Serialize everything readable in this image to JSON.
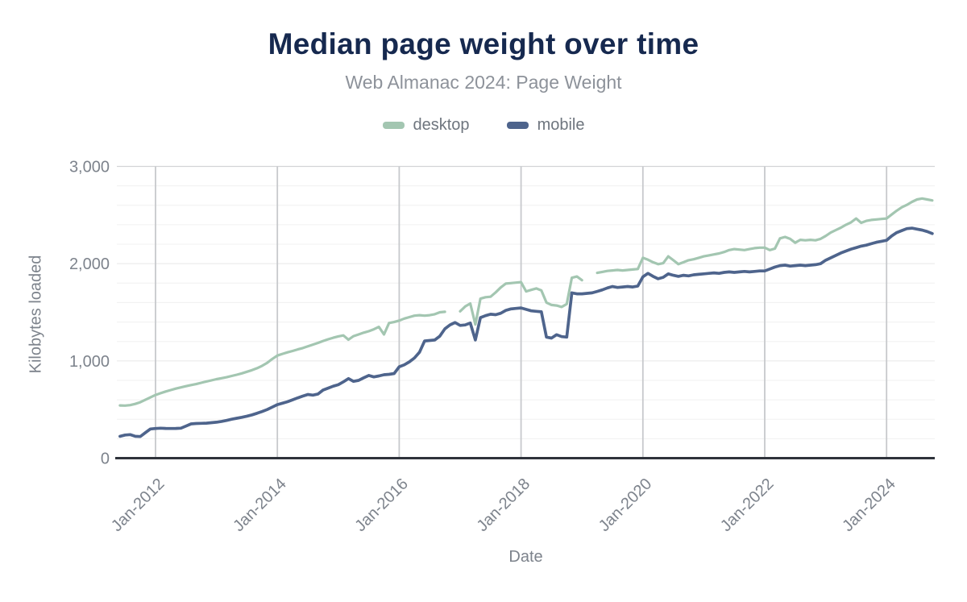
{
  "header": {
    "title": "Median page weight over time",
    "subtitle": "Web Almanac 2024: Page Weight"
  },
  "axes": {
    "y_title": "Kilobytes loaded",
    "x_title": "Date"
  },
  "chart_data": {
    "type": "line",
    "title": "Median page weight over time",
    "subtitle": "Web Almanac 2024: Page Weight",
    "xlabel": "Date",
    "ylabel": "Kilobytes loaded",
    "ylim": [
      0,
      3000
    ],
    "grid": "on",
    "legend_position": "top",
    "y_ticks": [
      {
        "v": 0,
        "label": "0"
      },
      {
        "v": 1000,
        "label": "1,000"
      },
      {
        "v": 2000,
        "label": "2,000"
      },
      {
        "v": 3000,
        "label": "3,000"
      }
    ],
    "y_minor_grid_step": 200,
    "x_ticks": [
      {
        "year": 2012,
        "label": "Jan-2012"
      },
      {
        "year": 2014,
        "label": "Jan-2014"
      },
      {
        "year": 2016,
        "label": "Jan-2016"
      },
      {
        "year": 2018,
        "label": "Jan-2018"
      },
      {
        "year": 2020,
        "label": "Jan-2020"
      },
      {
        "year": 2022,
        "label": "Jan-2022"
      },
      {
        "year": 2024,
        "label": "Jan-2024"
      }
    ],
    "x_start": "2011-06",
    "x_end": "2024-10",
    "x_frequency": "monthly",
    "units": "KB",
    "series": [
      {
        "name": "desktop",
        "color": "#a3c6b1",
        "values": [
          542,
          540,
          545,
          558,
          575,
          600,
          625,
          650,
          668,
          685,
          700,
          715,
          728,
          740,
          752,
          762,
          775,
          788,
          800,
          812,
          822,
          832,
          845,
          858,
          872,
          888,
          905,
          925,
          950,
          980,
          1020,
          1055,
          1072,
          1088,
          1102,
          1118,
          1132,
          1150,
          1168,
          1185,
          1205,
          1222,
          1238,
          1252,
          1262,
          1218,
          1255,
          1272,
          1290,
          1305,
          1325,
          1350,
          1272,
          1390,
          1400,
          1415,
          1435,
          1450,
          1465,
          1470,
          1465,
          1470,
          1480,
          1500,
          1505,
          null,
          null,
          1510,
          1560,
          1590,
          1375,
          1640,
          1655,
          1660,
          1705,
          1755,
          1795,
          1800,
          1805,
          1810,
          1715,
          1730,
          1745,
          1725,
          1600,
          1575,
          1570,
          1555,
          1585,
          1855,
          1868,
          1830,
          null,
          null,
          1905,
          1915,
          1925,
          1930,
          1935,
          1930,
          1935,
          1940,
          1945,
          2060,
          2040,
          2015,
          1995,
          2005,
          2075,
          2035,
          1995,
          2015,
          2035,
          2045,
          2060,
          2075,
          2085,
          2095,
          2105,
          2120,
          2140,
          2150,
          2145,
          2140,
          2150,
          2160,
          2165,
          2165,
          2140,
          2155,
          2260,
          2275,
          2255,
          2215,
          2245,
          2240,
          2245,
          2240,
          2255,
          2285,
          2320,
          2345,
          2370,
          2400,
          2425,
          2465,
          2420,
          2440,
          2450,
          2455,
          2460,
          2465,
          2505,
          2545,
          2580,
          2605,
          2635,
          2660,
          2670,
          2660,
          2650
        ]
      },
      {
        "name": "mobile",
        "color": "#4e648c",
        "values": [
          225,
          238,
          242,
          225,
          222,
          262,
          300,
          305,
          308,
          306,
          305,
          306,
          308,
          330,
          352,
          356,
          358,
          360,
          365,
          370,
          378,
          388,
          400,
          410,
          420,
          432,
          445,
          462,
          480,
          500,
          525,
          550,
          565,
          580,
          600,
          620,
          638,
          655,
          648,
          660,
          700,
          720,
          740,
          755,
          785,
          818,
          790,
          800,
          826,
          850,
          835,
          845,
          858,
          862,
          870,
          940,
          960,
          990,
          1030,
          1090,
          1205,
          1210,
          1215,
          1255,
          1330,
          1370,
          1395,
          1365,
          1370,
          1390,
          1215,
          1445,
          1465,
          1480,
          1475,
          1490,
          1520,
          1535,
          1540,
          1545,
          1530,
          1515,
          1510,
          1505,
          1245,
          1235,
          1270,
          1250,
          1245,
          1700,
          1690,
          1690,
          1695,
          1700,
          1715,
          1730,
          1750,
          1765,
          1755,
          1760,
          1765,
          1760,
          1770,
          1865,
          1900,
          1870,
          1845,
          1860,
          1895,
          1880,
          1870,
          1880,
          1875,
          1885,
          1890,
          1895,
          1900,
          1905,
          1900,
          1910,
          1915,
          1910,
          1915,
          1920,
          1915,
          1920,
          1925,
          1925,
          1945,
          1965,
          1980,
          1985,
          1975,
          1980,
          1985,
          1980,
          1985,
          1990,
          2000,
          2035,
          2060,
          2085,
          2110,
          2130,
          2150,
          2165,
          2180,
          2190,
          2205,
          2220,
          2230,
          2240,
          2285,
          2320,
          2340,
          2360,
          2365,
          2355,
          2345,
          2330,
          2310
        ]
      }
    ]
  }
}
